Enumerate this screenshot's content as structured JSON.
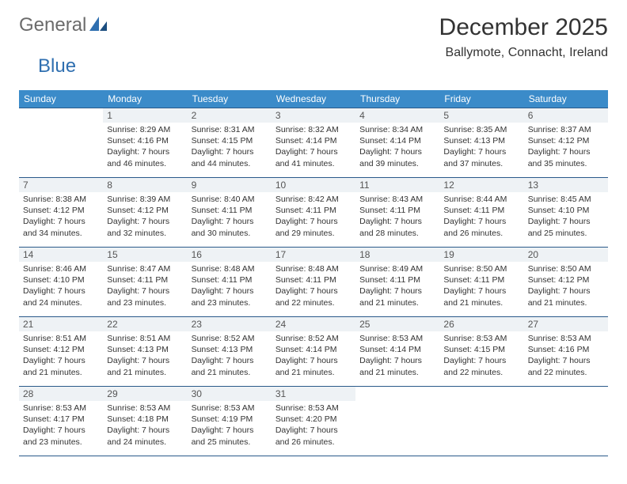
{
  "logo": {
    "word1": "General",
    "word2": "Blue"
  },
  "title": "December 2025",
  "location": "Ballymote, Connacht, Ireland",
  "headers": [
    "Sunday",
    "Monday",
    "Tuesday",
    "Wednesday",
    "Thursday",
    "Friday",
    "Saturday"
  ],
  "colors": {
    "header_bg": "#3b8bc9",
    "header_fg": "#ffffff",
    "row_border": "#2a5a8a",
    "daynum_bg": "#eef2f5",
    "logo_gray": "#6b6b6b",
    "logo_blue": "#2f6fb0"
  },
  "weeks": [
    [
      {
        "n": "",
        "sr": "",
        "ss": "",
        "dl": ""
      },
      {
        "n": "1",
        "sr": "Sunrise: 8:29 AM",
        "ss": "Sunset: 4:16 PM",
        "dl": "Daylight: 7 hours and 46 minutes."
      },
      {
        "n": "2",
        "sr": "Sunrise: 8:31 AM",
        "ss": "Sunset: 4:15 PM",
        "dl": "Daylight: 7 hours and 44 minutes."
      },
      {
        "n": "3",
        "sr": "Sunrise: 8:32 AM",
        "ss": "Sunset: 4:14 PM",
        "dl": "Daylight: 7 hours and 41 minutes."
      },
      {
        "n": "4",
        "sr": "Sunrise: 8:34 AM",
        "ss": "Sunset: 4:14 PM",
        "dl": "Daylight: 7 hours and 39 minutes."
      },
      {
        "n": "5",
        "sr": "Sunrise: 8:35 AM",
        "ss": "Sunset: 4:13 PM",
        "dl": "Daylight: 7 hours and 37 minutes."
      },
      {
        "n": "6",
        "sr": "Sunrise: 8:37 AM",
        "ss": "Sunset: 4:12 PM",
        "dl": "Daylight: 7 hours and 35 minutes."
      }
    ],
    [
      {
        "n": "7",
        "sr": "Sunrise: 8:38 AM",
        "ss": "Sunset: 4:12 PM",
        "dl": "Daylight: 7 hours and 34 minutes."
      },
      {
        "n": "8",
        "sr": "Sunrise: 8:39 AM",
        "ss": "Sunset: 4:12 PM",
        "dl": "Daylight: 7 hours and 32 minutes."
      },
      {
        "n": "9",
        "sr": "Sunrise: 8:40 AM",
        "ss": "Sunset: 4:11 PM",
        "dl": "Daylight: 7 hours and 30 minutes."
      },
      {
        "n": "10",
        "sr": "Sunrise: 8:42 AM",
        "ss": "Sunset: 4:11 PM",
        "dl": "Daylight: 7 hours and 29 minutes."
      },
      {
        "n": "11",
        "sr": "Sunrise: 8:43 AM",
        "ss": "Sunset: 4:11 PM",
        "dl": "Daylight: 7 hours and 28 minutes."
      },
      {
        "n": "12",
        "sr": "Sunrise: 8:44 AM",
        "ss": "Sunset: 4:11 PM",
        "dl": "Daylight: 7 hours and 26 minutes."
      },
      {
        "n": "13",
        "sr": "Sunrise: 8:45 AM",
        "ss": "Sunset: 4:10 PM",
        "dl": "Daylight: 7 hours and 25 minutes."
      }
    ],
    [
      {
        "n": "14",
        "sr": "Sunrise: 8:46 AM",
        "ss": "Sunset: 4:10 PM",
        "dl": "Daylight: 7 hours and 24 minutes."
      },
      {
        "n": "15",
        "sr": "Sunrise: 8:47 AM",
        "ss": "Sunset: 4:11 PM",
        "dl": "Daylight: 7 hours and 23 minutes."
      },
      {
        "n": "16",
        "sr": "Sunrise: 8:48 AM",
        "ss": "Sunset: 4:11 PM",
        "dl": "Daylight: 7 hours and 23 minutes."
      },
      {
        "n": "17",
        "sr": "Sunrise: 8:48 AM",
        "ss": "Sunset: 4:11 PM",
        "dl": "Daylight: 7 hours and 22 minutes."
      },
      {
        "n": "18",
        "sr": "Sunrise: 8:49 AM",
        "ss": "Sunset: 4:11 PM",
        "dl": "Daylight: 7 hours and 21 minutes."
      },
      {
        "n": "19",
        "sr": "Sunrise: 8:50 AM",
        "ss": "Sunset: 4:11 PM",
        "dl": "Daylight: 7 hours and 21 minutes."
      },
      {
        "n": "20",
        "sr": "Sunrise: 8:50 AM",
        "ss": "Sunset: 4:12 PM",
        "dl": "Daylight: 7 hours and 21 minutes."
      }
    ],
    [
      {
        "n": "21",
        "sr": "Sunrise: 8:51 AM",
        "ss": "Sunset: 4:12 PM",
        "dl": "Daylight: 7 hours and 21 minutes."
      },
      {
        "n": "22",
        "sr": "Sunrise: 8:51 AM",
        "ss": "Sunset: 4:13 PM",
        "dl": "Daylight: 7 hours and 21 minutes."
      },
      {
        "n": "23",
        "sr": "Sunrise: 8:52 AM",
        "ss": "Sunset: 4:13 PM",
        "dl": "Daylight: 7 hours and 21 minutes."
      },
      {
        "n": "24",
        "sr": "Sunrise: 8:52 AM",
        "ss": "Sunset: 4:14 PM",
        "dl": "Daylight: 7 hours and 21 minutes."
      },
      {
        "n": "25",
        "sr": "Sunrise: 8:53 AM",
        "ss": "Sunset: 4:14 PM",
        "dl": "Daylight: 7 hours and 21 minutes."
      },
      {
        "n": "26",
        "sr": "Sunrise: 8:53 AM",
        "ss": "Sunset: 4:15 PM",
        "dl": "Daylight: 7 hours and 22 minutes."
      },
      {
        "n": "27",
        "sr": "Sunrise: 8:53 AM",
        "ss": "Sunset: 4:16 PM",
        "dl": "Daylight: 7 hours and 22 minutes."
      }
    ],
    [
      {
        "n": "28",
        "sr": "Sunrise: 8:53 AM",
        "ss": "Sunset: 4:17 PM",
        "dl": "Daylight: 7 hours and 23 minutes."
      },
      {
        "n": "29",
        "sr": "Sunrise: 8:53 AM",
        "ss": "Sunset: 4:18 PM",
        "dl": "Daylight: 7 hours and 24 minutes."
      },
      {
        "n": "30",
        "sr": "Sunrise: 8:53 AM",
        "ss": "Sunset: 4:19 PM",
        "dl": "Daylight: 7 hours and 25 minutes."
      },
      {
        "n": "31",
        "sr": "Sunrise: 8:53 AM",
        "ss": "Sunset: 4:20 PM",
        "dl": "Daylight: 7 hours and 26 minutes."
      },
      {
        "n": "",
        "sr": "",
        "ss": "",
        "dl": ""
      },
      {
        "n": "",
        "sr": "",
        "ss": "",
        "dl": ""
      },
      {
        "n": "",
        "sr": "",
        "ss": "",
        "dl": ""
      }
    ]
  ]
}
